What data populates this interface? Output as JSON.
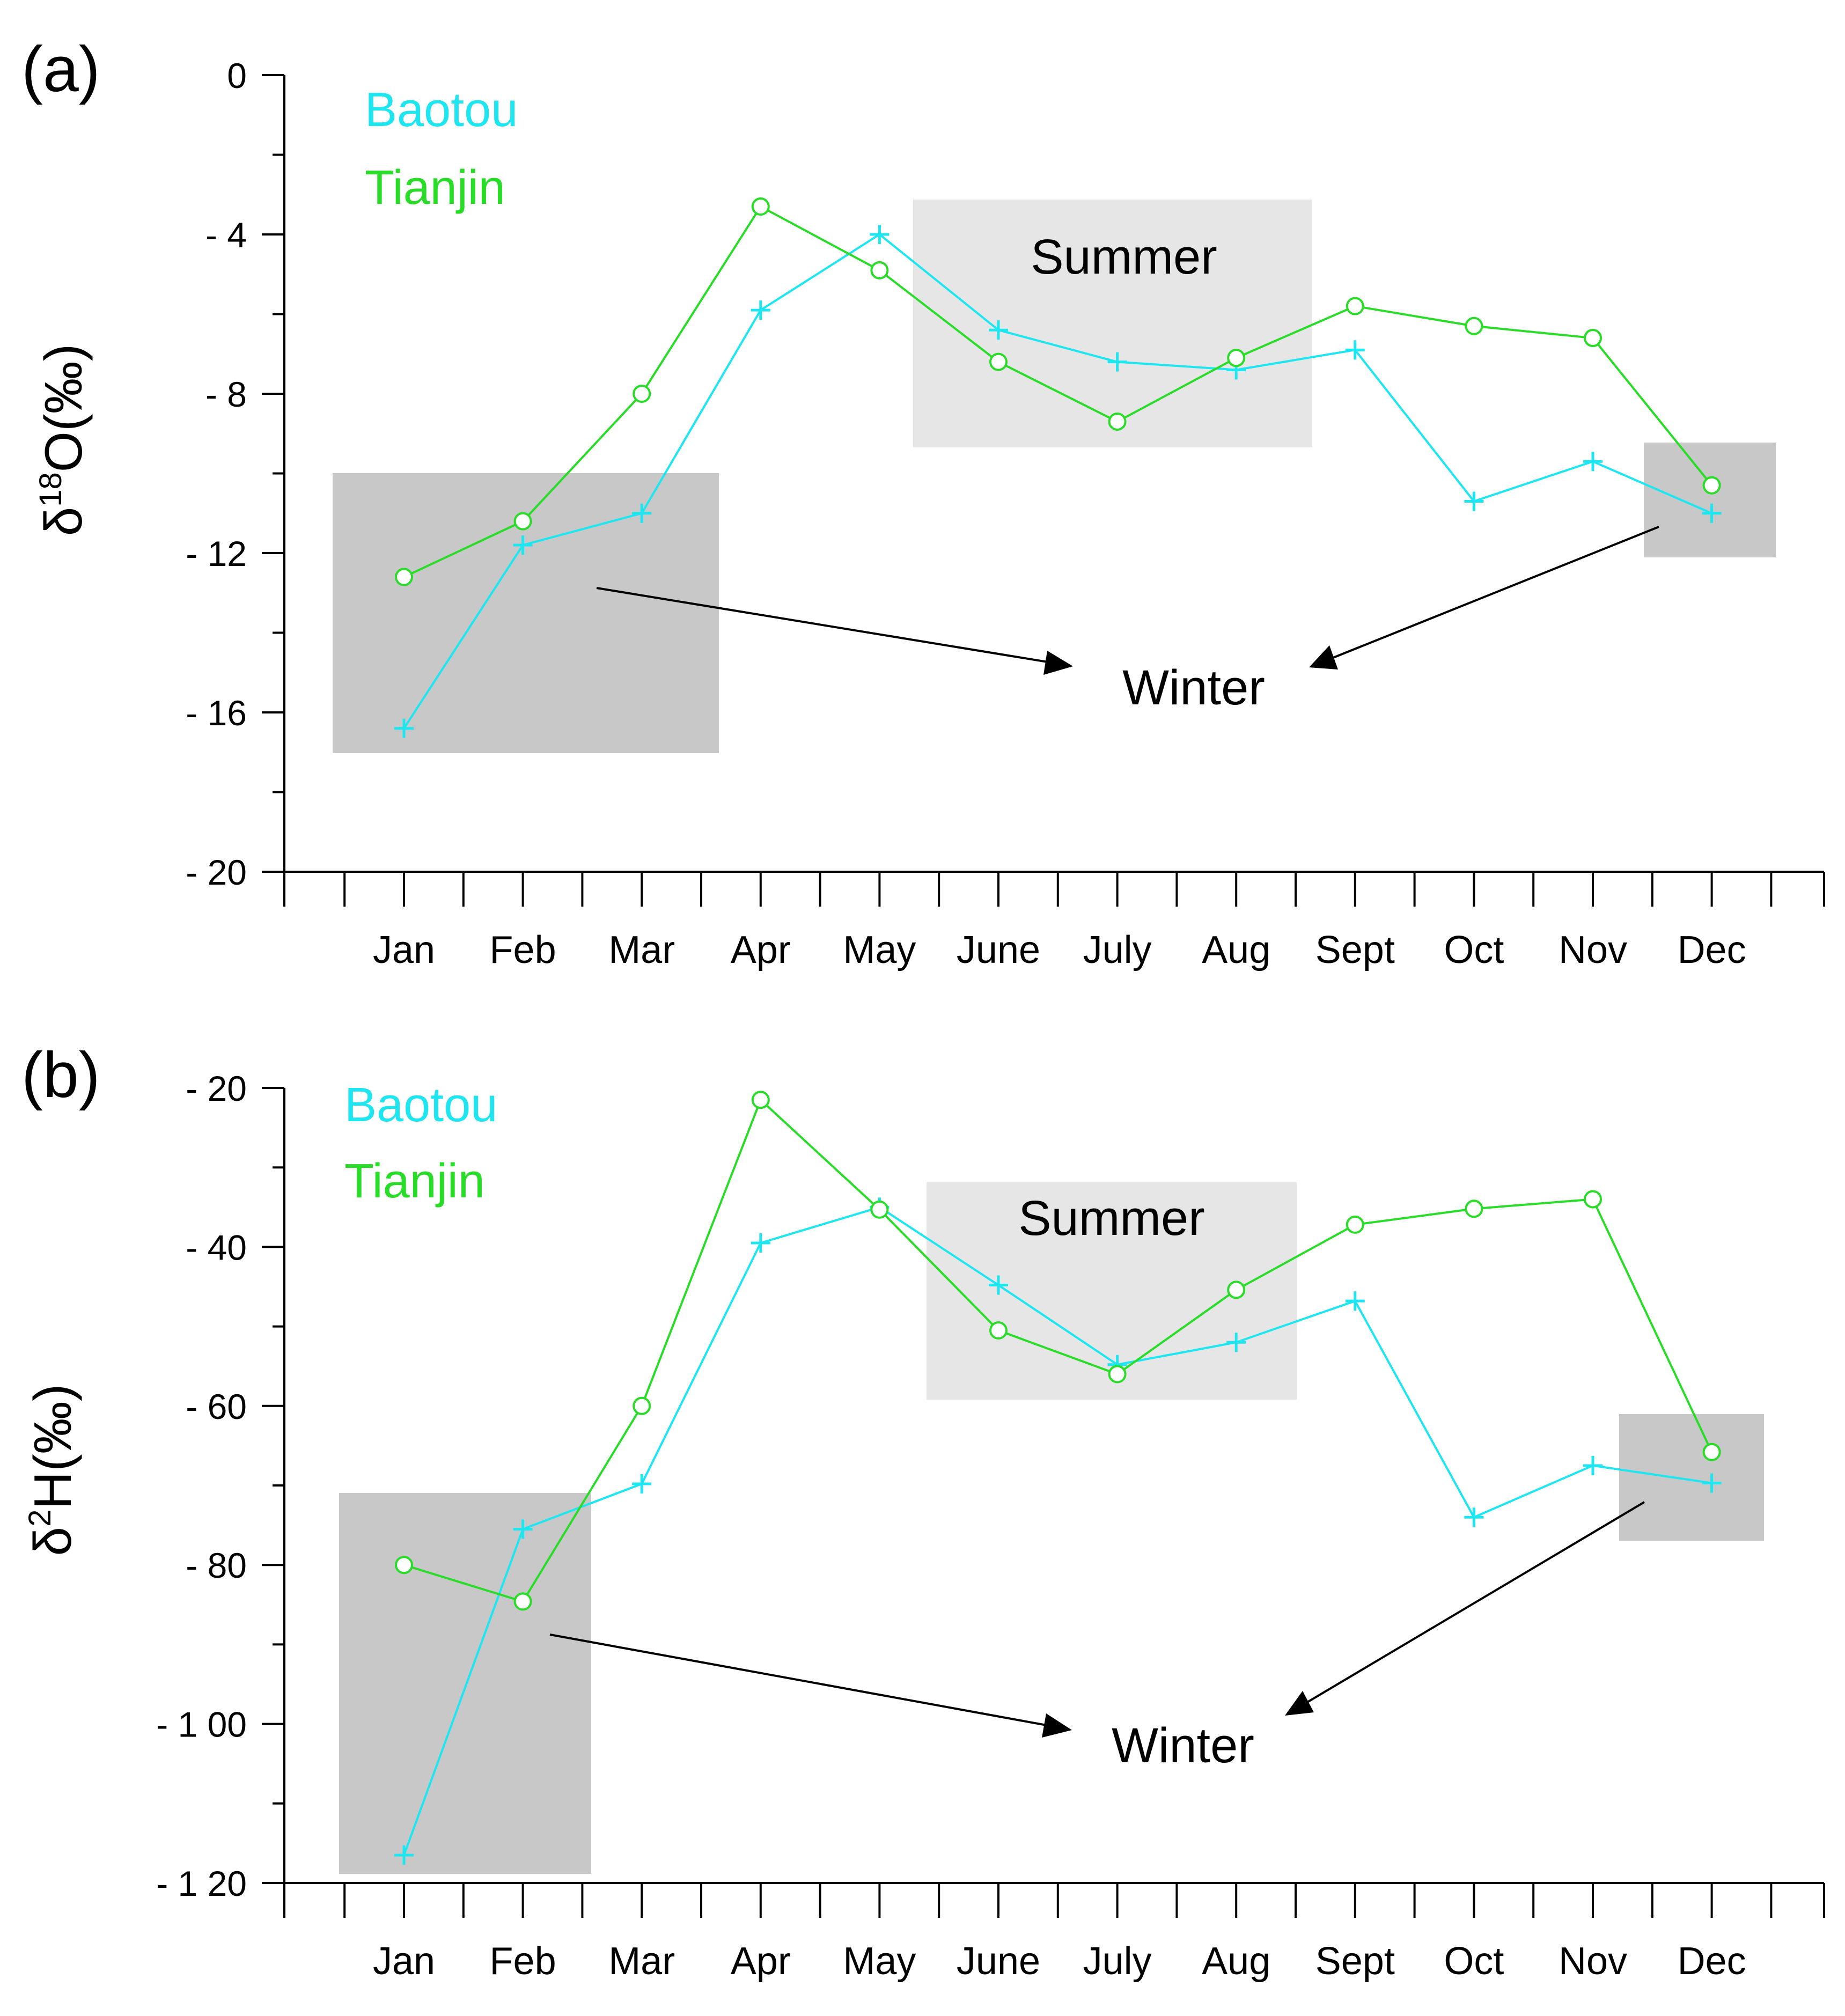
{
  "colors": {
    "baotou": "#1ee6f0",
    "tianjin": "#28dc28",
    "summer_box": "#e6e6e6",
    "winter_box": "#c8c8c8",
    "axis": "#000000"
  },
  "chart_data": [
    {
      "type": "line",
      "panel_label": "(a)",
      "ylabel": {
        "prefix": "δ",
        "sup": "18",
        "suffix": "O(‰)"
      },
      "ylim": [
        -20,
        0
      ],
      "yticks": [
        0,
        -4,
        -8,
        -12,
        -16,
        -20
      ],
      "ytick_labels": [
        "0",
        "- 4",
        "- 8",
        "- 12",
        "- 16",
        "- 20"
      ],
      "categories": [
        "Jan",
        "Feb",
        "Mar",
        "Apr",
        "May",
        "June",
        "July",
        "Aug",
        "Sept",
        "Oct",
        "Nov",
        "Dec"
      ],
      "series": [
        {
          "name": "Baotou",
          "marker": "plus",
          "values": [
            -16.4,
            -11.8,
            -11.0,
            -5.9,
            -4.0,
            -6.4,
            -7.2,
            -7.4,
            -6.9,
            -10.7,
            -9.7,
            -11.0
          ]
        },
        {
          "name": "Tianjin",
          "marker": "circle",
          "values": [
            -12.6,
            -11.2,
            -8.0,
            -3.3,
            -4.9,
            -7.2,
            -8.7,
            -7.1,
            -5.8,
            -6.3,
            -6.6,
            -10.3
          ]
        }
      ],
      "annotations": {
        "summer": "Summer",
        "winter": "Winter"
      }
    },
    {
      "type": "line",
      "panel_label": "(b)",
      "ylabel": {
        "prefix": "δ",
        "sup": "2",
        "suffix": "H(‰)"
      },
      "ylim": [
        -120,
        -20
      ],
      "yticks": [
        -20,
        -40,
        -60,
        -80,
        -100,
        -120
      ],
      "ytick_labels": [
        "- 20",
        "- 40",
        "- 60",
        "- 80",
        "- 1 00",
        "- 1 20"
      ],
      "categories": [
        "Jan",
        "Feb",
        "Mar",
        "Apr",
        "May",
        "June",
        "July",
        "Aug",
        "Sept",
        "Oct",
        "Nov",
        "Dec"
      ],
      "series": [
        {
          "name": "Baotou",
          "marker": "plus",
          "values": [
            -116.5,
            -75.5,
            -69.8,
            -39.5,
            -35.0,
            -44.8,
            -54.8,
            -52.0,
            -46.8,
            -74.0,
            -67.5,
            -69.7
          ]
        },
        {
          "name": "Tianjin",
          "marker": "circle",
          "values": [
            -80.0,
            -84.6,
            -60.0,
            -21.5,
            -35.3,
            -50.5,
            -56.0,
            -45.4,
            -37.2,
            -35.2,
            -34.0,
            -65.8
          ]
        }
      ],
      "annotations": {
        "summer": "Summer",
        "winter": "Winter"
      }
    }
  ]
}
